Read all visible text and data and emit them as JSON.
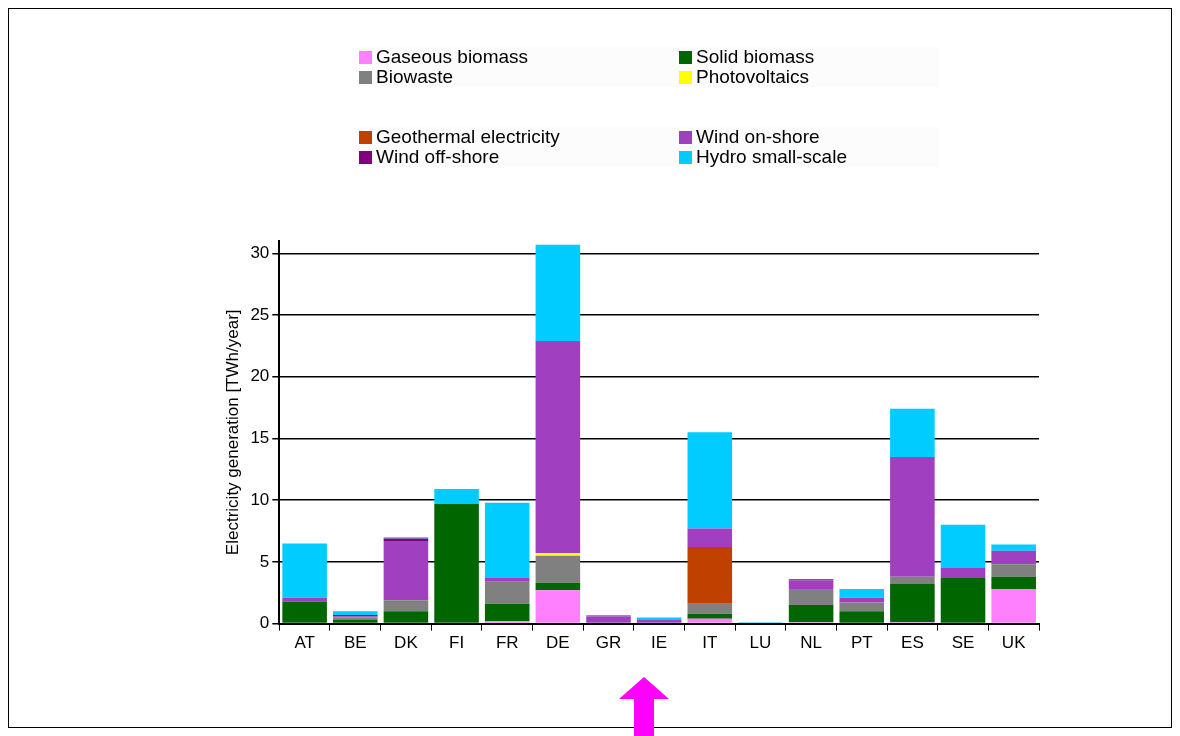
{
  "chart_data": {
    "type": "bar",
    "stacked": true,
    "ylabel": "Electricity generation [TWh/year]",
    "categories": [
      "AT",
      "BE",
      "DK",
      "FI",
      "FR",
      "DE",
      "GR",
      "IE",
      "IT",
      "LU",
      "NL",
      "PT",
      "ES",
      "SE",
      "UK"
    ],
    "series": [
      {
        "name": "Gaseous biomass",
        "color": "#ff80ff",
        "values": [
          0,
          0,
          0,
          0,
          0.2,
          2.7,
          0,
          0,
          0.4,
          0,
          0.1,
          0,
          0.1,
          0,
          2.8
        ]
      },
      {
        "name": "Solid biomass",
        "color": "#006600",
        "values": [
          1.8,
          0.3,
          1.0,
          9.7,
          1.4,
          0.6,
          0,
          0,
          0.4,
          0,
          1.4,
          1.0,
          3.1,
          3.7,
          1.0
        ]
      },
      {
        "name": "Biowaste",
        "color": "#808080",
        "values": [
          0,
          0.2,
          0.9,
          0,
          1.8,
          2.2,
          0,
          0,
          0.8,
          0,
          1.3,
          0.7,
          0.6,
          0,
          1.0
        ]
      },
      {
        "name": "Photovoltaics",
        "color": "#ffff00",
        "values": [
          0,
          0,
          0,
          0,
          0,
          0.2,
          0,
          0,
          0,
          0,
          0,
          0,
          0,
          0,
          0
        ]
      },
      {
        "name": "Geothermal electricity",
        "color": "#c04000",
        "values": [
          0,
          0,
          0,
          0,
          0,
          0,
          0,
          0,
          4.6,
          0,
          0,
          0,
          0,
          0,
          0
        ]
      },
      {
        "name": "Wind on-shore",
        "color": "#a040c0",
        "values": [
          0.3,
          0.1,
          4.8,
          0,
          0.3,
          17.2,
          0.6,
          0.3,
          1.5,
          0,
          0.7,
          0.4,
          9.7,
          0.8,
          1.1
        ]
      },
      {
        "name": "Wind off-shore",
        "color": "#800080",
        "values": [
          0,
          0.1,
          0.2,
          0,
          0,
          0,
          0,
          0,
          0,
          0,
          0.1,
          0,
          0,
          0,
          0
        ]
      },
      {
        "name": "Hydro small-scale",
        "color": "#00ccff",
        "values": [
          4.4,
          0.3,
          0.1,
          1.2,
          6.1,
          7.8,
          0.1,
          0.2,
          7.8,
          0.1,
          0,
          0.7,
          3.9,
          3.5,
          0.5
        ]
      }
    ],
    "ylim": [
      0,
      31
    ],
    "yticks": [
      0,
      5,
      10,
      15,
      20,
      25,
      30
    ],
    "grid": "y",
    "legend": "top"
  }
}
